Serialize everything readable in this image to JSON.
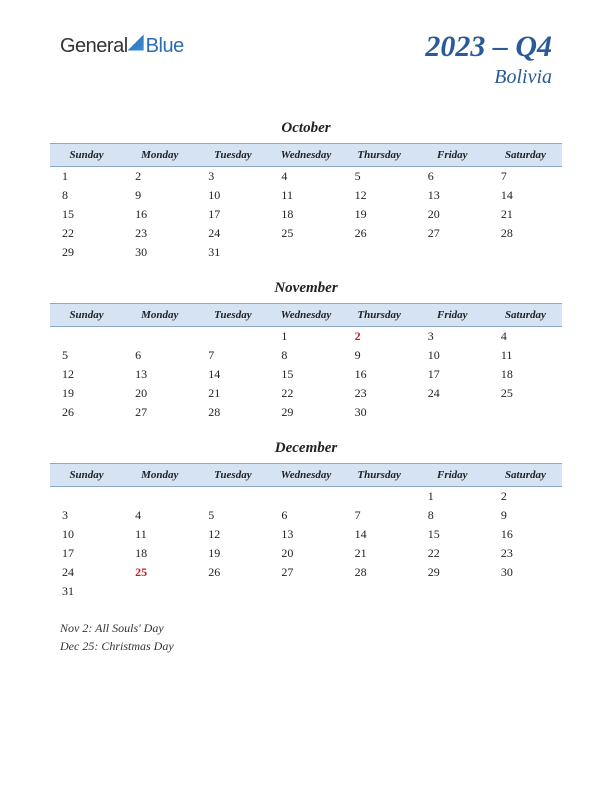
{
  "logo": {
    "part1": "General",
    "part2": "Blue"
  },
  "header": {
    "quarter": "2023 – Q4",
    "country": "Bolivia"
  },
  "day_headers": [
    "Sunday",
    "Monday",
    "Tuesday",
    "Wednesday",
    "Thursday",
    "Friday",
    "Saturday"
  ],
  "colors": {
    "header_bg": "#d5e3f3",
    "header_border": "#8aa8cc",
    "title_color": "#2a5a9a",
    "holiday_color": "#c02020",
    "text_color": "#222222",
    "background": "#ffffff"
  },
  "fonts": {
    "body_family": "Georgia, serif",
    "title_size_pt": 30,
    "country_size_pt": 20,
    "month_size_pt": 15,
    "header_size_pt": 11,
    "cell_size_pt": 12,
    "legend_size_pt": 12
  },
  "months": [
    {
      "name": "October",
      "weeks": [
        [
          1,
          2,
          3,
          4,
          5,
          6,
          7
        ],
        [
          8,
          9,
          10,
          11,
          12,
          13,
          14
        ],
        [
          15,
          16,
          17,
          18,
          19,
          20,
          21
        ],
        [
          22,
          23,
          24,
          25,
          26,
          27,
          28
        ],
        [
          29,
          30,
          31,
          "",
          "",
          "",
          ""
        ]
      ],
      "holidays": []
    },
    {
      "name": "November",
      "weeks": [
        [
          "",
          "",
          "",
          1,
          2,
          3,
          4
        ],
        [
          5,
          6,
          7,
          8,
          9,
          10,
          11
        ],
        [
          12,
          13,
          14,
          15,
          16,
          17,
          18
        ],
        [
          19,
          20,
          21,
          22,
          23,
          24,
          25
        ],
        [
          26,
          27,
          28,
          29,
          30,
          "",
          ""
        ]
      ],
      "holidays": [
        2
      ]
    },
    {
      "name": "December",
      "weeks": [
        [
          "",
          "",
          "",
          "",
          "",
          1,
          2
        ],
        [
          3,
          4,
          5,
          6,
          7,
          8,
          9
        ],
        [
          10,
          11,
          12,
          13,
          14,
          15,
          16
        ],
        [
          17,
          18,
          19,
          20,
          21,
          22,
          23
        ],
        [
          24,
          25,
          26,
          27,
          28,
          29,
          30
        ],
        [
          31,
          "",
          "",
          "",
          "",
          "",
          ""
        ]
      ],
      "holidays": [
        25
      ]
    }
  ],
  "legend": [
    "Nov 2: All Souls' Day",
    "Dec 25: Christmas Day"
  ]
}
